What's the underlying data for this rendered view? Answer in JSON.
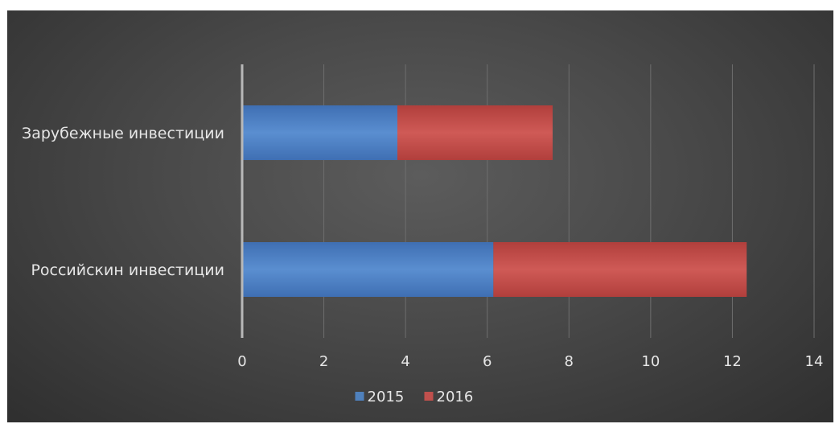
{
  "chart_data": {
    "type": "bar",
    "orientation": "horizontal",
    "stacked": true,
    "categories": [
      "Зарубежные инвестиции",
      "Российскин инвестиции"
    ],
    "series": [
      {
        "name": "2015",
        "values": [
          3.8,
          6.15
        ],
        "color": "#4f81bd"
      },
      {
        "name": "2016",
        "values": [
          3.8,
          6.2
        ],
        "color": "#c0504d"
      }
    ],
    "xlim": [
      0,
      14
    ],
    "xticks": [
      0,
      2,
      4,
      6,
      8,
      10,
      12,
      14
    ],
    "grid": true,
    "legend": "bottom",
    "title": "",
    "xlabel": "",
    "ylabel": ""
  }
}
